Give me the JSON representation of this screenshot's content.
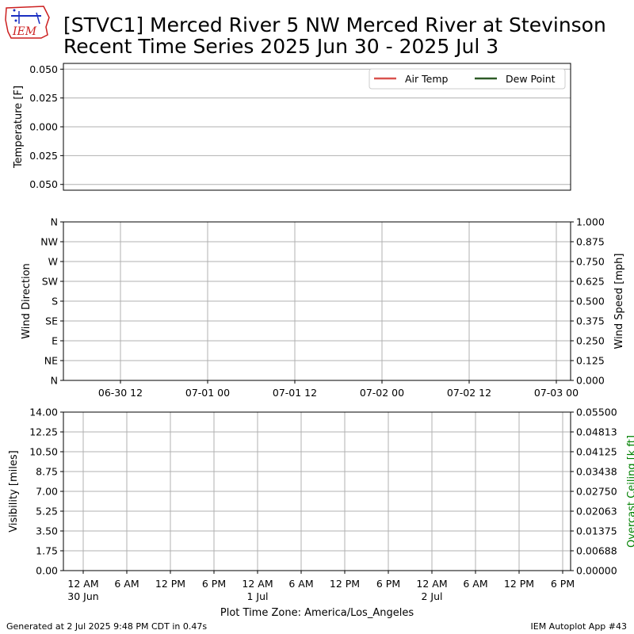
{
  "title": {
    "line1": "[STVC1] Merced River 5 NW Merced River at Stevinson",
    "line2": "Recent Time Series 2025 Jun 30 - 2025 Jul 3"
  },
  "logo_text": "IEM",
  "colors": {
    "air_temp": "#d9534f",
    "dew_point": "#2d5a27",
    "ceiling_label": "#008000",
    "grid": "#b0b0b0",
    "logo_red": "#cc1f1f",
    "logo_blue": "#1a2fc2"
  },
  "footer": {
    "left": "Generated at 2 Jul 2025 9:48 PM CDT in 0.47s",
    "right": "IEM Autoplot App #43"
  },
  "chart_data": [
    {
      "type": "line",
      "name": "temperature",
      "ylabel": "Temperature [F]",
      "ylim": [
        -0.055,
        0.055
      ],
      "yticks": [
        "0.050",
        "0.025",
        "0.000",
        "0.025",
        "0.050"
      ],
      "ytick_values": [
        0.05,
        0.025,
        0.0,
        -0.025,
        -0.05
      ],
      "grid": "y",
      "legend": {
        "placement": "top-right",
        "entries": [
          "Air Temp",
          "Dew Point"
        ]
      },
      "series": [
        {
          "name": "Air Temp",
          "values": []
        },
        {
          "name": "Dew Point",
          "values": []
        }
      ]
    },
    {
      "type": "line",
      "name": "wind",
      "ylabel": "Wind Direction",
      "y2label": "Wind Speed [mph]",
      "ylim": [
        0,
        360
      ],
      "y2lim": [
        0,
        1
      ],
      "yticks": [
        "N",
        "NW",
        "W",
        "SW",
        "S",
        "SE",
        "E",
        "NE",
        "N"
      ],
      "ytick_values": [
        360,
        315,
        270,
        225,
        180,
        135,
        90,
        45,
        0
      ],
      "y2ticks": [
        "1.000",
        "0.875",
        "0.750",
        "0.625",
        "0.500",
        "0.375",
        "0.250",
        "0.125",
        "0.000"
      ],
      "xticks": [
        "06-30 12",
        "07-01 00",
        "07-01 12",
        "07-02 00",
        "07-02 12",
        "07-03 00"
      ],
      "grid": "both",
      "series": []
    },
    {
      "type": "line",
      "name": "visibility",
      "ylabel": "Visibility [miles]",
      "y2label": "Overcast Ceiling [k ft]",
      "ylim": [
        0,
        14
      ],
      "y2lim": [
        0,
        0.055
      ],
      "yticks": [
        "14.00",
        "12.25",
        "10.50",
        "8.75",
        "7.00",
        "5.25",
        "3.50",
        "1.75",
        "0.00"
      ],
      "y2ticks": [
        "0.05500",
        "0.04813",
        "0.04125",
        "0.03438",
        "0.02750",
        "0.02063",
        "0.01375",
        "0.00688",
        "0.00000"
      ],
      "xticks": [
        {
          "l1": "12 AM",
          "l2": "30 Jun"
        },
        {
          "l1": "6 AM",
          "l2": ""
        },
        {
          "l1": "12 PM",
          "l2": ""
        },
        {
          "l1": "6 PM",
          "l2": ""
        },
        {
          "l1": "12 AM",
          "l2": "1 Jul"
        },
        {
          "l1": "6 AM",
          "l2": ""
        },
        {
          "l1": "12 PM",
          "l2": ""
        },
        {
          "l1": "6 PM",
          "l2": ""
        },
        {
          "l1": "12 AM",
          "l2": "2 Jul"
        },
        {
          "l1": "6 AM",
          "l2": ""
        },
        {
          "l1": "12 PM",
          "l2": ""
        },
        {
          "l1": "6 PM",
          "l2": ""
        }
      ],
      "xlabel": "Plot Time Zone: America/Los_Angeles",
      "grid": "both",
      "series": []
    }
  ]
}
